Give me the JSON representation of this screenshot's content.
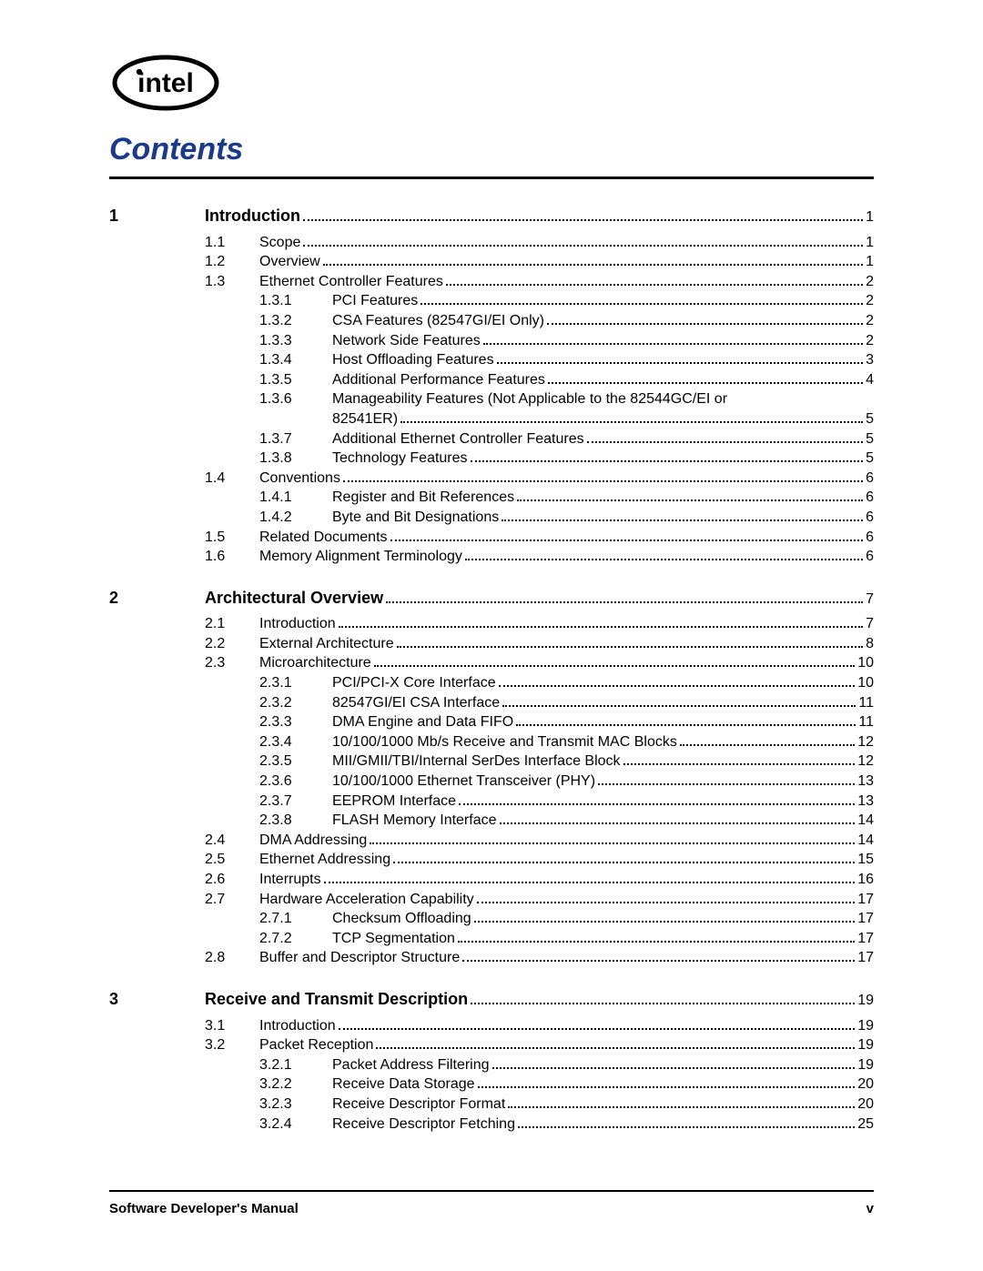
{
  "title": "Contents",
  "footer": {
    "left": "Software Developer's Manual",
    "right": "v"
  },
  "chapters": [
    {
      "num": "1",
      "title": "Introduction",
      "page": "1",
      "items": [
        {
          "lvl": 1,
          "num": "1.1",
          "title": "Scope",
          "page": "1"
        },
        {
          "lvl": 1,
          "num": "1.2",
          "title": "Overview",
          "page": "1"
        },
        {
          "lvl": 1,
          "num": "1.3",
          "title": "Ethernet Controller Features",
          "page": "2"
        },
        {
          "lvl": 2,
          "num": "1.3.1",
          "title": "PCI Features",
          "page": "2"
        },
        {
          "lvl": 2,
          "num": "1.3.2",
          "title": "CSA Features (82547GI/EI Only)",
          "page": "2"
        },
        {
          "lvl": 2,
          "num": "1.3.3",
          "title": "Network Side Features",
          "page": "2"
        },
        {
          "lvl": 2,
          "num": "1.3.4",
          "title": "Host Offloading Features",
          "page": "3"
        },
        {
          "lvl": 2,
          "num": "1.3.5",
          "title": "Additional Performance Features",
          "page": "4"
        },
        {
          "lvl": 2,
          "num": "1.3.6",
          "title": "Manageability Features (Not Applicable to the 82544GC/EI or",
          "cont": "82541ER)",
          "page": "5"
        },
        {
          "lvl": 2,
          "num": "1.3.7",
          "title": "Additional Ethernet Controller Features",
          "page": "5"
        },
        {
          "lvl": 2,
          "num": "1.3.8",
          "title": "Technology Features",
          "page": "5"
        },
        {
          "lvl": 1,
          "num": "1.4",
          "title": "Conventions",
          "page": "6"
        },
        {
          "lvl": 2,
          "num": "1.4.1",
          "title": "Register and Bit References",
          "page": "6"
        },
        {
          "lvl": 2,
          "num": "1.4.2",
          "title": "Byte and Bit Designations",
          "page": "6"
        },
        {
          "lvl": 1,
          "num": "1.5",
          "title": "Related Documents",
          "page": "6"
        },
        {
          "lvl": 1,
          "num": "1.6",
          "title": "Memory Alignment Terminology",
          "page": "6"
        }
      ]
    },
    {
      "num": "2",
      "title": "Architectural Overview",
      "page": "7",
      "items": [
        {
          "lvl": 1,
          "num": "2.1",
          "title": "Introduction",
          "page": "7"
        },
        {
          "lvl": 1,
          "num": "2.2",
          "title": "External Architecture",
          "page": "8"
        },
        {
          "lvl": 1,
          "num": "2.3",
          "title": "Microarchitecture",
          "page": "10"
        },
        {
          "lvl": 2,
          "num": "2.3.1",
          "title": "PCI/PCI-X Core Interface",
          "page": "10"
        },
        {
          "lvl": 2,
          "num": "2.3.2",
          "title": "82547GI/EI CSA Interface",
          "page": "11"
        },
        {
          "lvl": 2,
          "num": "2.3.3",
          "title": "DMA Engine and Data FIFO",
          "page": "11"
        },
        {
          "lvl": 2,
          "num": "2.3.4",
          "title": "10/100/1000 Mb/s Receive and Transmit MAC Blocks",
          "page": "12"
        },
        {
          "lvl": 2,
          "num": "2.3.5",
          "title": "MII/GMII/TBI/Internal SerDes Interface Block",
          "page": "12"
        },
        {
          "lvl": 2,
          "num": "2.3.6",
          "title": "10/100/1000 Ethernet Transceiver (PHY)",
          "page": "13"
        },
        {
          "lvl": 2,
          "num": "2.3.7",
          "title": "EEPROM Interface",
          "page": "13"
        },
        {
          "lvl": 2,
          "num": "2.3.8",
          "title": "FLASH Memory Interface",
          "page": "14"
        },
        {
          "lvl": 1,
          "num": "2.4",
          "title": "DMA Addressing",
          "page": "14"
        },
        {
          "lvl": 1,
          "num": "2.5",
          "title": "Ethernet Addressing",
          "page": "15"
        },
        {
          "lvl": 1,
          "num": "2.6",
          "title": "Interrupts",
          "page": "16"
        },
        {
          "lvl": 1,
          "num": "2.7",
          "title": "Hardware Acceleration Capability",
          "page": "17"
        },
        {
          "lvl": 2,
          "num": "2.7.1",
          "title": "Checksum Offloading",
          "page": "17"
        },
        {
          "lvl": 2,
          "num": "2.7.2",
          "title": "TCP Segmentation",
          "page": "17"
        },
        {
          "lvl": 1,
          "num": "2.8",
          "title": "Buffer and Descriptor Structure",
          "page": "17"
        }
      ]
    },
    {
      "num": "3",
      "title": "Receive and Transmit Description",
      "page": "19",
      "items": [
        {
          "lvl": 1,
          "num": "3.1",
          "title": "Introduction",
          "page": "19"
        },
        {
          "lvl": 1,
          "num": "3.2",
          "title": "Packet Reception",
          "page": "19"
        },
        {
          "lvl": 2,
          "num": "3.2.1",
          "title": "Packet Address Filtering",
          "page": "19"
        },
        {
          "lvl": 2,
          "num": "3.2.2",
          "title": "Receive Data Storage",
          "page": "20"
        },
        {
          "lvl": 2,
          "num": "3.2.3",
          "title": "Receive Descriptor Format",
          "page": "20"
        },
        {
          "lvl": 2,
          "num": "3.2.4",
          "title": "Receive Descriptor Fetching",
          "page": "25"
        }
      ]
    }
  ]
}
